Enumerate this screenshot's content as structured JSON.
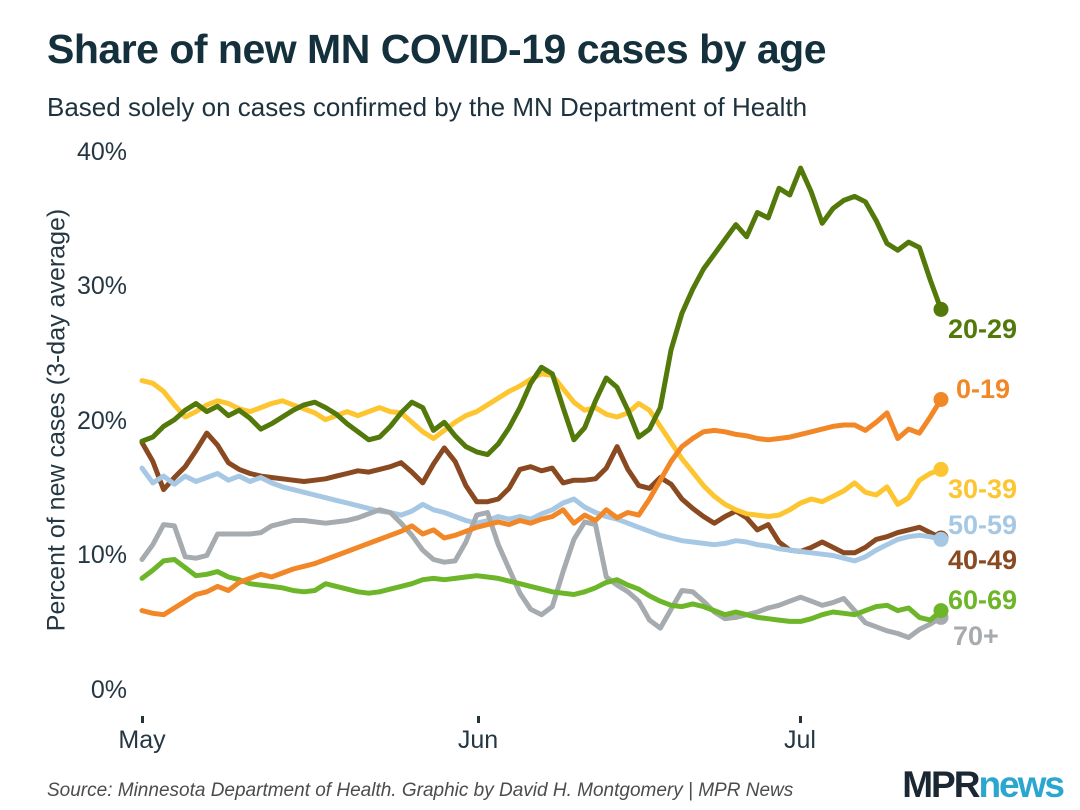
{
  "header": {
    "title": "Share of new MN COVID-19 cases by age",
    "subtitle": "Based solely on cases confirmed by the MN Department of Health"
  },
  "footer": {
    "source": "Source: Minnesota Department of Health. Graphic by David H. Montgomery | MPR News",
    "logo": {
      "mpr": "MPR",
      "news": "news",
      "mpr_color": "#1b2732",
      "news_color": "#2aa6cf"
    }
  },
  "chart_data": {
    "type": "line",
    "title": "Share of new MN COVID-19 cases by age",
    "subtitle": "Based solely on cases confirmed by the MN Department of Health",
    "ylabel": "Percent of new cases (3-day average)",
    "xlabel": "",
    "ylim": [
      0,
      40
    ],
    "grid": false,
    "legend_position": "right-end-labels",
    "line_width": 5,
    "x_start": "May 1",
    "x_end": "Jul 14",
    "x_unit": "day",
    "yticks": [
      {
        "label": "40%",
        "value": 40
      },
      {
        "label": "30%",
        "value": 30
      },
      {
        "label": "20%",
        "value": 20
      },
      {
        "label": "10%",
        "value": 10
      },
      {
        "label": "0%",
        "value": 0
      }
    ],
    "xticks": [
      {
        "label": "May",
        "day": 0
      },
      {
        "label": "Jun",
        "day": 31
      },
      {
        "label": "Jul",
        "day": 61
      }
    ],
    "draw_order": [
      4,
      3,
      6,
      5,
      2,
      0,
      1
    ],
    "series": [
      {
        "name": "20-29",
        "color": "#53790b",
        "values": [
          18.5,
          18.8,
          19.6,
          20.1,
          20.8,
          21.3,
          20.7,
          21.1,
          20.4,
          20.8,
          20.2,
          19.4,
          19.8,
          20.3,
          20.8,
          21.2,
          21.4,
          21.0,
          20.5,
          19.8,
          19.2,
          18.6,
          18.8,
          19.6,
          20.6,
          21.4,
          21.0,
          19.3,
          19.9,
          18.9,
          18.1,
          17.7,
          17.5,
          18.3,
          19.5,
          21.0,
          22.8,
          24.0,
          23.5,
          21.0,
          18.6,
          19.5,
          21.5,
          23.2,
          22.5,
          20.8,
          18.8,
          19.4,
          21.0,
          25.3,
          28.0,
          29.8,
          31.3,
          32.4,
          33.5,
          34.6,
          33.7,
          35.5,
          35.1,
          37.3,
          36.8,
          38.8,
          37.0,
          34.7,
          35.8,
          36.4,
          36.7,
          36.3,
          34.9,
          33.2,
          32.7,
          33.3,
          32.9,
          30.5,
          28.3
        ]
      },
      {
        "name": "0-19",
        "color": "#f28727",
        "values": [
          5.9,
          5.7,
          5.6,
          6.1,
          6.6,
          7.1,
          7.3,
          7.7,
          7.4,
          8.0,
          8.3,
          8.6,
          8.4,
          8.7,
          9.0,
          9.2,
          9.4,
          9.7,
          10.0,
          10.3,
          10.6,
          10.9,
          11.2,
          11.5,
          11.8,
          12.2,
          11.6,
          11.9,
          11.3,
          11.5,
          11.8,
          12.1,
          12.3,
          12.5,
          12.3,
          12.6,
          12.4,
          12.7,
          12.9,
          13.4,
          12.4,
          13.0,
          12.6,
          13.4,
          12.8,
          13.2,
          13.0,
          14.2,
          15.6,
          17.0,
          18.1,
          18.7,
          19.2,
          19.3,
          19.2,
          19.0,
          18.9,
          18.7,
          18.6,
          18.7,
          18.8,
          19.0,
          19.2,
          19.4,
          19.6,
          19.7,
          19.7,
          19.3,
          19.9,
          20.6,
          18.7,
          19.4,
          19.1,
          20.3,
          21.6
        ]
      },
      {
        "name": "30-39",
        "color": "#fdc530",
        "values": [
          23.0,
          22.8,
          22.2,
          21.2,
          20.3,
          20.7,
          21.2,
          21.5,
          21.3,
          20.9,
          20.7,
          21.0,
          21.3,
          21.5,
          21.2,
          20.9,
          20.6,
          20.1,
          20.4,
          20.7,
          20.4,
          20.7,
          21.0,
          20.7,
          20.6,
          19.9,
          19.2,
          18.7,
          19.3,
          19.9,
          20.4,
          20.7,
          21.2,
          21.7,
          22.2,
          22.6,
          23.1,
          23.5,
          23.4,
          22.4,
          21.4,
          20.8,
          21.0,
          20.5,
          20.3,
          20.6,
          21.3,
          20.8,
          19.6,
          18.4,
          17.2,
          16.2,
          15.2,
          14.4,
          13.8,
          13.4,
          13.1,
          13.0,
          12.9,
          13.0,
          13.4,
          13.9,
          14.2,
          14.0,
          14.4,
          14.8,
          15.4,
          14.7,
          14.5,
          15.1,
          13.8,
          14.3,
          15.6,
          16.1,
          16.4
        ]
      },
      {
        "name": "50-59",
        "color": "#a7c8e4",
        "values": [
          16.5,
          15.4,
          15.9,
          15.3,
          15.9,
          15.5,
          15.8,
          16.1,
          15.6,
          15.9,
          15.5,
          15.8,
          15.4,
          15.1,
          14.9,
          14.7,
          14.5,
          14.3,
          14.1,
          13.9,
          13.7,
          13.5,
          13.3,
          13.2,
          13.0,
          13.3,
          13.8,
          13.4,
          13.2,
          12.9,
          12.6,
          12.4,
          12.6,
          12.9,
          12.7,
          12.9,
          12.7,
          13.1,
          13.4,
          13.9,
          14.2,
          13.6,
          13.2,
          12.9,
          12.7,
          12.4,
          12.1,
          11.8,
          11.5,
          11.3,
          11.1,
          11.0,
          10.9,
          10.8,
          10.9,
          11.1,
          11.0,
          10.8,
          10.7,
          10.5,
          10.4,
          10.3,
          10.2,
          10.1,
          10.0,
          9.8,
          9.6,
          9.9,
          10.4,
          10.8,
          11.2,
          11.4,
          11.5,
          11.4,
          11.2
        ]
      },
      {
        "name": "40-49",
        "color": "#8a4a21",
        "values": [
          18.4,
          17.0,
          14.9,
          15.8,
          16.6,
          17.8,
          19.1,
          18.2,
          16.9,
          16.4,
          16.1,
          15.9,
          15.8,
          15.7,
          15.6,
          15.5,
          15.6,
          15.7,
          15.9,
          16.1,
          16.3,
          16.2,
          16.4,
          16.6,
          16.9,
          16.2,
          15.4,
          16.8,
          18.0,
          17.0,
          15.2,
          14.0,
          14.0,
          14.2,
          15.0,
          16.4,
          16.6,
          16.3,
          16.5,
          15.4,
          15.6,
          15.6,
          15.7,
          16.5,
          18.1,
          16.4,
          15.2,
          15.0,
          15.8,
          15.3,
          14.2,
          13.5,
          12.9,
          12.4,
          12.9,
          13.3,
          12.8,
          11.9,
          12.3,
          11.0,
          10.4,
          10.3,
          10.6,
          11.0,
          10.6,
          10.2,
          10.2,
          10.6,
          11.2,
          11.4,
          11.7,
          11.9,
          12.1,
          11.7,
          11.3
        ]
      },
      {
        "name": "60-69",
        "color": "#6db529",
        "values": [
          8.3,
          8.9,
          9.6,
          9.7,
          9.1,
          8.5,
          8.6,
          8.8,
          8.4,
          8.2,
          7.9,
          7.8,
          7.7,
          7.6,
          7.4,
          7.3,
          7.4,
          7.9,
          7.7,
          7.5,
          7.3,
          7.2,
          7.3,
          7.5,
          7.7,
          7.9,
          8.2,
          8.3,
          8.2,
          8.3,
          8.4,
          8.5,
          8.4,
          8.3,
          8.1,
          7.9,
          7.7,
          7.5,
          7.3,
          7.2,
          7.1,
          7.3,
          7.6,
          8.0,
          8.2,
          7.8,
          7.5,
          7.0,
          6.6,
          6.3,
          6.2,
          6.4,
          6.2,
          5.9,
          5.6,
          5.8,
          5.6,
          5.4,
          5.3,
          5.2,
          5.1,
          5.1,
          5.3,
          5.6,
          5.8,
          5.7,
          5.6,
          5.9,
          6.2,
          6.3,
          5.9,
          6.1,
          5.4,
          5.2,
          5.9
        ]
      },
      {
        "name": "70+",
        "color": "#a6abaf",
        "values": [
          9.7,
          10.8,
          12.3,
          12.2,
          9.9,
          9.8,
          10.0,
          11.6,
          11.6,
          11.6,
          11.6,
          11.7,
          12.2,
          12.4,
          12.6,
          12.6,
          12.5,
          12.4,
          12.5,
          12.6,
          12.8,
          13.1,
          13.4,
          13.2,
          12.4,
          11.5,
          10.4,
          9.7,
          9.5,
          9.6,
          11.0,
          13.0,
          13.2,
          10.8,
          9.0,
          7.2,
          6.0,
          5.6,
          6.2,
          8.8,
          11.2,
          12.5,
          12.3,
          8.4,
          7.8,
          7.3,
          6.6,
          5.2,
          4.6,
          6.0,
          7.4,
          7.3,
          6.6,
          5.8,
          5.3,
          5.4,
          5.6,
          5.8,
          6.1,
          6.3,
          6.6,
          6.9,
          6.6,
          6.3,
          6.5,
          6.8,
          5.9,
          5.0,
          4.7,
          4.4,
          4.2,
          3.9,
          4.5,
          4.9,
          5.4
        ]
      }
    ]
  }
}
